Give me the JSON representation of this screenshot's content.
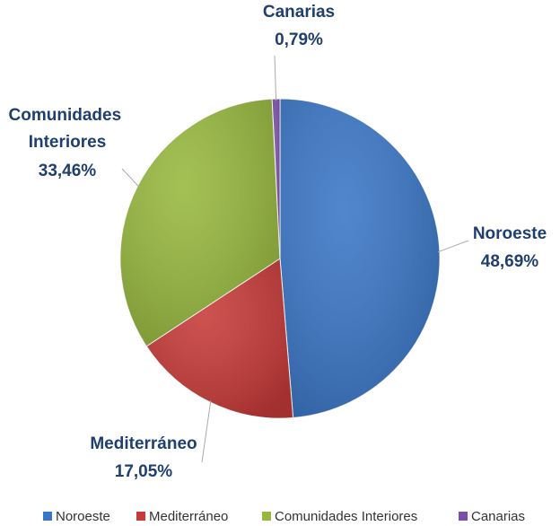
{
  "chart_data": {
    "type": "pie",
    "categories": [
      "Noroeste",
      "Mediterráneo",
      "Comunidades Interiores",
      "Canarias"
    ],
    "values": [
      48.69,
      17.05,
      33.46,
      0.79
    ],
    "value_labels": [
      "48,69%",
      "17,05%",
      "33,46%",
      "0,79%"
    ],
    "colors": [
      "#3a76c6",
      "#c63a38",
      "#97b83e",
      "#7b4fa8"
    ],
    "legend": "bottom"
  }
}
